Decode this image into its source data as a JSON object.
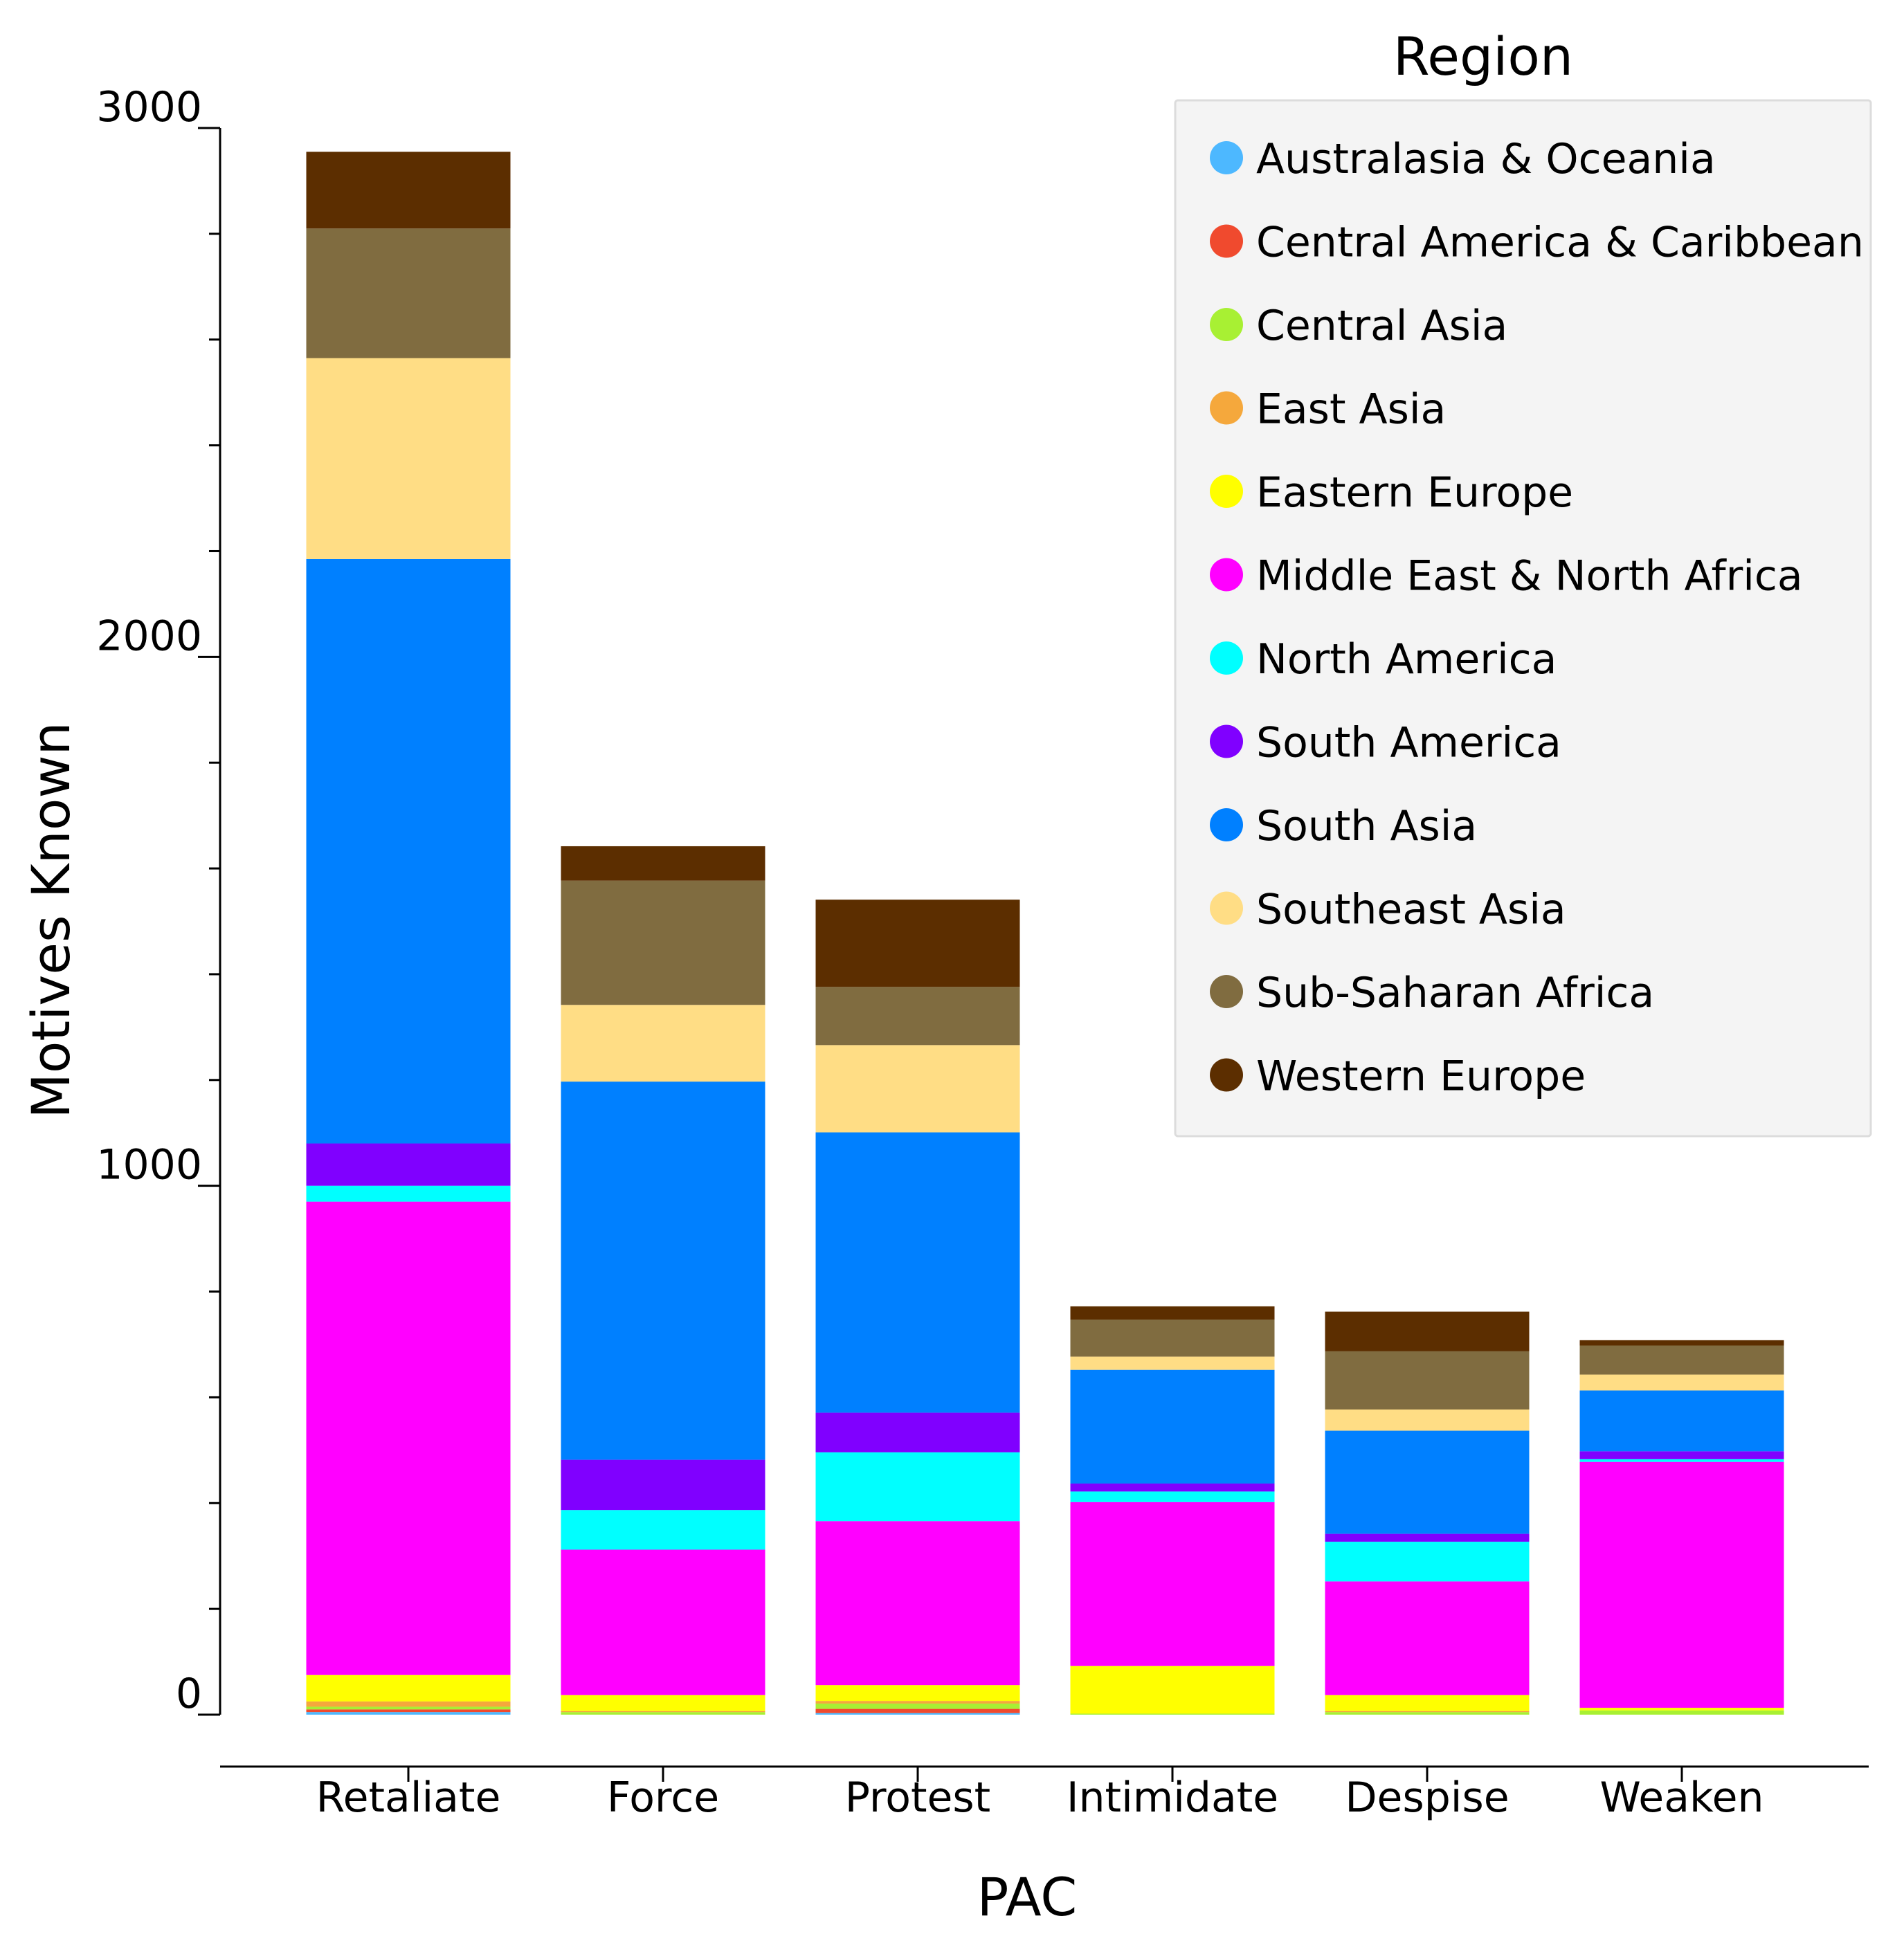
{
  "chart_data": {
    "type": "bar",
    "stacked": true,
    "title": "",
    "xlabel": "PAC",
    "ylabel": "Motives Known",
    "ylim": [
      0,
      3000
    ],
    "yticks": [
      0,
      1000,
      2000,
      3000
    ],
    "y_minor_tick_step": 200,
    "grid": false,
    "legend_title": "Region",
    "legend_position": "top-right",
    "categories": [
      "Retaliate",
      "Force",
      "Protest",
      "Intimidate",
      "Despise",
      "Weaken"
    ],
    "series": [
      {
        "name": "Australasia & Oceania",
        "color": "#4DB8FF",
        "values": [
          5,
          0,
          3,
          0,
          0,
          0
        ]
      },
      {
        "name": "Central America & Caribbean",
        "color": "#F04A2E",
        "values": [
          5,
          0,
          8,
          0,
          0,
          0
        ]
      },
      {
        "name": "Central Asia",
        "color": "#A8F033",
        "values": [
          5,
          5,
          10,
          2,
          5,
          8
        ]
      },
      {
        "name": "East Asia",
        "color": "#F5A83C",
        "values": [
          10,
          2,
          5,
          0,
          2,
          0
        ]
      },
      {
        "name": "Eastern Europe",
        "color": "#FFFF00",
        "values": [
          50,
          30,
          30,
          90,
          30,
          5
        ]
      },
      {
        "name": "Middle East & North Africa",
        "color": "#FF00FF",
        "values": [
          895,
          275,
          310,
          310,
          215,
          465
        ]
      },
      {
        "name": "North America",
        "color": "#00FFFF",
        "values": [
          30,
          75,
          130,
          20,
          75,
          5
        ]
      },
      {
        "name": "South America",
        "color": "#8000FF",
        "values": [
          80,
          95,
          75,
          15,
          15,
          15
        ]
      },
      {
        "name": "South Asia",
        "color": "#0080FF",
        "values": [
          1105,
          715,
          530,
          215,
          195,
          115
        ]
      },
      {
        "name": "Southeast Asia",
        "color": "#FFDD85",
        "values": [
          380,
          145,
          165,
          25,
          40,
          30
        ]
      },
      {
        "name": "Sub-Saharan Africa",
        "color": "#806C40",
        "values": [
          245,
          235,
          110,
          70,
          110,
          55
        ]
      },
      {
        "name": "Western Europe",
        "color": "#5C2E00",
        "values": [
          145,
          65,
          165,
          25,
          75,
          10
        ]
      }
    ]
  }
}
